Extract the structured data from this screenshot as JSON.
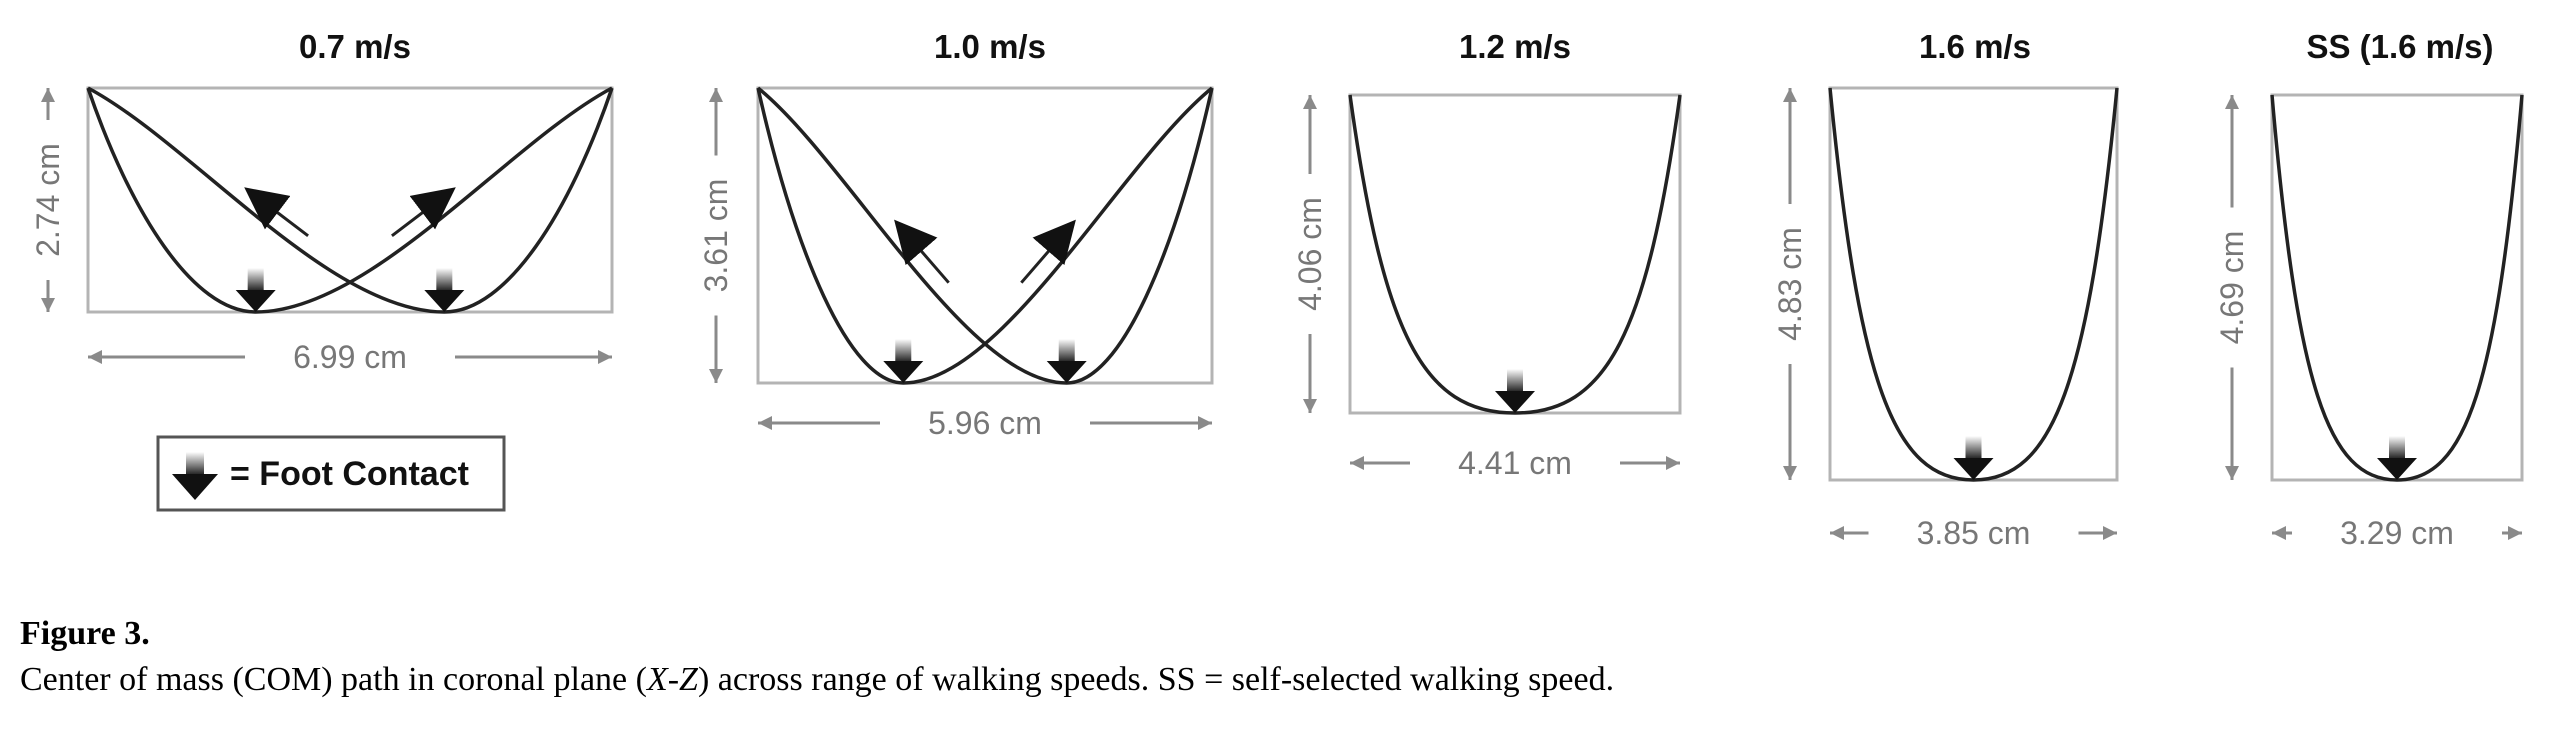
{
  "figure": {
    "label": "Figure 3.",
    "caption": {
      "before": "Center of mass (COM) path in coronal plane (",
      "axes": "X-Z",
      "after": ") across range of walking speeds. SS = self-selected walking speed."
    }
  },
  "legend": {
    "label": "= Foot Contact",
    "icon": "foot-contact-arrow-icon"
  },
  "colors": {
    "curve": "#222222",
    "box": "#b4b4b4",
    "dimension": "#8a8a8a",
    "marker": "#111111"
  },
  "panels": [
    {
      "speed": "0.7 m/s",
      "height": "2.74 cm",
      "width": "6.99 cm",
      "shape": "double-loop",
      "foot_contacts": 2
    },
    {
      "speed": "1.0 m/s",
      "height": "3.61 cm",
      "width": "5.96 cm",
      "shape": "double-loop",
      "foot_contacts": 2
    },
    {
      "speed": "1.2 m/s",
      "height": "4.06 cm",
      "width": "4.41 cm",
      "shape": "u-shape",
      "foot_contacts": 1
    },
    {
      "speed": "1.6 m/s",
      "height": "4.83 cm",
      "width": "3.85 cm",
      "shape": "u-shape",
      "foot_contacts": 1
    },
    {
      "speed": "SS (1.6 m/s)",
      "height": "4.69 cm",
      "width": "3.29 cm",
      "shape": "u-shape",
      "foot_contacts": 1
    }
  ]
}
